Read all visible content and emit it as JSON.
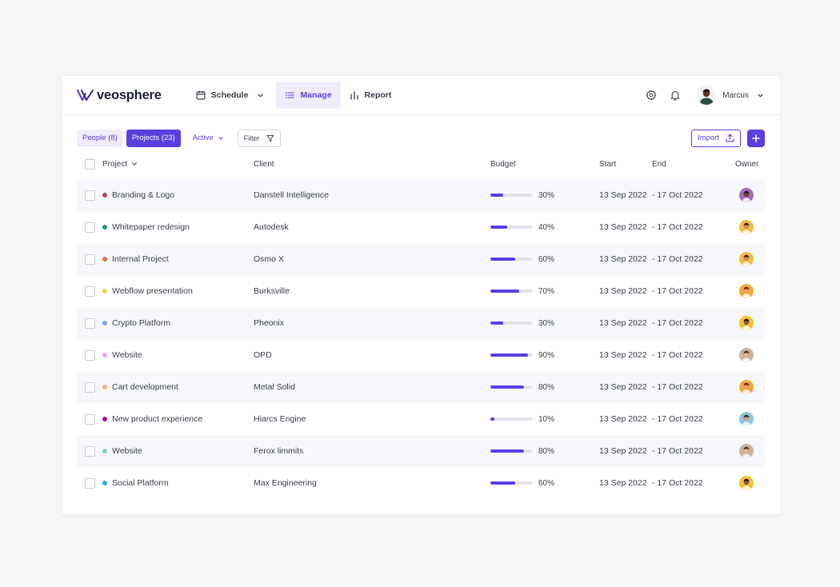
{
  "brand": {
    "name": "veosphere",
    "accent": "#5a3fe0"
  },
  "nav": {
    "links": [
      {
        "label": "Schedule",
        "icon": "calendar-icon",
        "has_dropdown": true,
        "active": false
      },
      {
        "label": "Manage",
        "icon": "list-icon",
        "active": true
      },
      {
        "label": "Report",
        "icon": "bar-chart-icon",
        "active": false
      }
    ],
    "user_name": "Marcus"
  },
  "toolbar": {
    "people_tab": "People (8)",
    "projects_tab": "Projects (23)",
    "status_filter": "Active",
    "filter_label": "Filter",
    "import_label": "Import"
  },
  "table": {
    "headers": {
      "project": "Project",
      "client": "Client",
      "budget": "Budget",
      "start": "Start",
      "end": "End",
      "owner": "Owner"
    },
    "rows": [
      {
        "project": "Branding & Logo",
        "dot": "#b34a4a",
        "client": "Danstell Intelligence",
        "budget": 0.3,
        "budget_label": "30%",
        "start": "13 Sep 2022",
        "end": "- 17 Oct 2022",
        "owner_bg": "#a768b8",
        "owner_skin": "#6b3f2e",
        "owner_hair": "#1f1a1a"
      },
      {
        "project": "Whitepaper redesign",
        "dot": "#1f9a62",
        "client": "Autodesk",
        "budget": 0.4,
        "budget_label": "40%",
        "start": "13 Sep 2022",
        "end": "- 17 Oct 2022",
        "owner_bg": "#f4b942",
        "owner_skin": "#c98b5e",
        "owner_hair": "#3a2418"
      },
      {
        "project": "Internal Project",
        "dot": "#ee6a3c",
        "client": "Osmo X",
        "budget": 0.6,
        "budget_label": "60%",
        "start": "13 Sep 2022",
        "end": "- 17 Oct 2022",
        "owner_bg": "#f4b942",
        "owner_skin": "#c98b5e",
        "owner_hair": "#3a2418"
      },
      {
        "project": "Webflow presentation",
        "dot": "#f1d04a",
        "client": "Burksville",
        "budget": 0.7,
        "budget_label": "70%",
        "start": "13 Sep 2022",
        "end": "- 17 Oct 2022",
        "owner_bg": "#f1a93b",
        "owner_skin": "#e8a07a",
        "owner_hair": "#6a2b18"
      },
      {
        "project": "Crypto Platform",
        "dot": "#7aa8f0",
        "client": "Pheonix",
        "budget": 0.3,
        "budget_label": "30%",
        "start": "13 Sep 2022",
        "end": "- 17 Oct 2022",
        "owner_bg": "#f4c132",
        "owner_skin": "#8a5a3a",
        "owner_hair": "#1e1512"
      },
      {
        "project": "Website",
        "dot": "#f1a6e8",
        "client": "OPD",
        "budget": 0.9,
        "budget_label": "90%",
        "start": "13 Sep 2022",
        "end": "- 17 Oct 2022",
        "owner_bg": "#c5b3a4",
        "owner_skin": "#e3b28d",
        "owner_hair": "#4b3326"
      },
      {
        "project": "Cart development",
        "dot": "#f6b27a",
        "client": "Metal Solid",
        "budget": 0.8,
        "budget_label": "80%",
        "start": "13 Sep 2022",
        "end": "- 17 Oct 2022",
        "owner_bg": "#f1a93b",
        "owner_skin": "#e8a07a",
        "owner_hair": "#6a2b18"
      },
      {
        "project": "New product experience",
        "dot": "#a1119a",
        "client": "Hiarcs Engine",
        "budget": 0.1,
        "budget_label": "10%",
        "start": "13 Sep 2022",
        "end": "- 17 Oct 2022",
        "owner_bg": "#87c9dc",
        "owner_skin": "#d9a07a",
        "owner_hair": "#2b2a2a"
      },
      {
        "project": "Website",
        "dot": "#7fdbb0",
        "client": "Ferox limmits",
        "budget": 0.8,
        "budget_label": "80%",
        "start": "13 Sep 2022",
        "end": "- 17 Oct 2022",
        "owner_bg": "#c5b3a4",
        "owner_skin": "#e3b28d",
        "owner_hair": "#4b3326"
      },
      {
        "project": "Social Platform",
        "dot": "#2aa8e8",
        "client": "Max Engineering",
        "budget": 0.6,
        "budget_label": "60%",
        "start": "13 Sep 2022",
        "end": "- 17 Oct 2022",
        "owner_bg": "#f4c132",
        "owner_skin": "#8a5a3a",
        "owner_hair": "#1e1512"
      }
    ]
  }
}
